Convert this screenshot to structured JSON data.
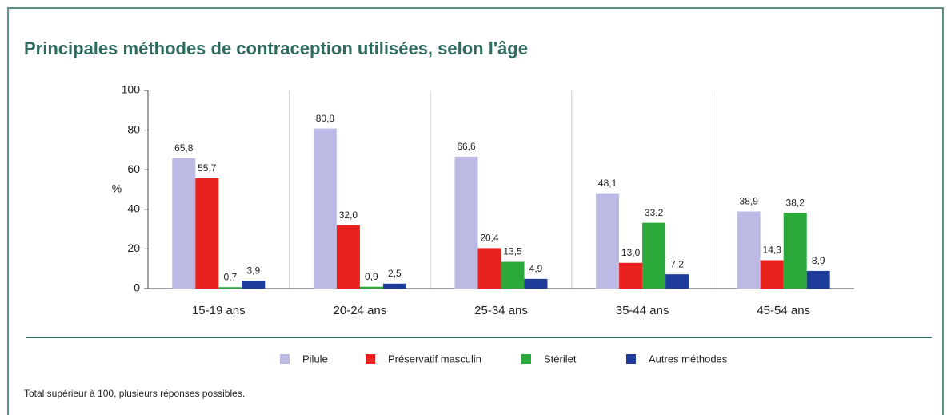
{
  "chart_data": {
    "type": "bar",
    "title": "Principales méthodes de contraception utilisées, selon l'âge",
    "y_label": "%",
    "note": "Total supérieur à 100, plusieurs réponses possibles.",
    "categories": [
      "15-19 ans",
      "20-24 ans",
      "25-34 ans",
      "35-44 ans",
      "45-54 ans"
    ],
    "series": [
      {
        "name": "Pilule",
        "color": "#bcbae4",
        "values": [
          65.8,
          80.8,
          66.6,
          48.1,
          38.9
        ],
        "value_labels": [
          "65,8",
          "80,8",
          "66,6",
          "48,1",
          "38,9"
        ]
      },
      {
        "name": "Préservatif masculin",
        "color": "#e8221f",
        "values": [
          55.7,
          32.0,
          20.4,
          13.0,
          14.3
        ],
        "value_labels": [
          "55,7",
          "32,0",
          "20,4",
          "13,0",
          "14,3"
        ]
      },
      {
        "name": "Stérilet",
        "color": "#2aa83a",
        "values": [
          0.7,
          0.9,
          13.5,
          33.2,
          38.2
        ],
        "value_labels": [
          "0,7",
          "0,9",
          "13,5",
          "33,2",
          "38,2"
        ]
      },
      {
        "name": "Autres méthodes",
        "color": "#1e3c9c",
        "values": [
          3.9,
          2.5,
          4.9,
          7.2,
          8.9
        ],
        "value_labels": [
          "3,9",
          "2,5",
          "4,9",
          "7,2",
          "8,9"
        ]
      }
    ],
    "ylim": [
      0,
      100
    ],
    "yticks": [
      0,
      20,
      40,
      60,
      80,
      100
    ]
  }
}
